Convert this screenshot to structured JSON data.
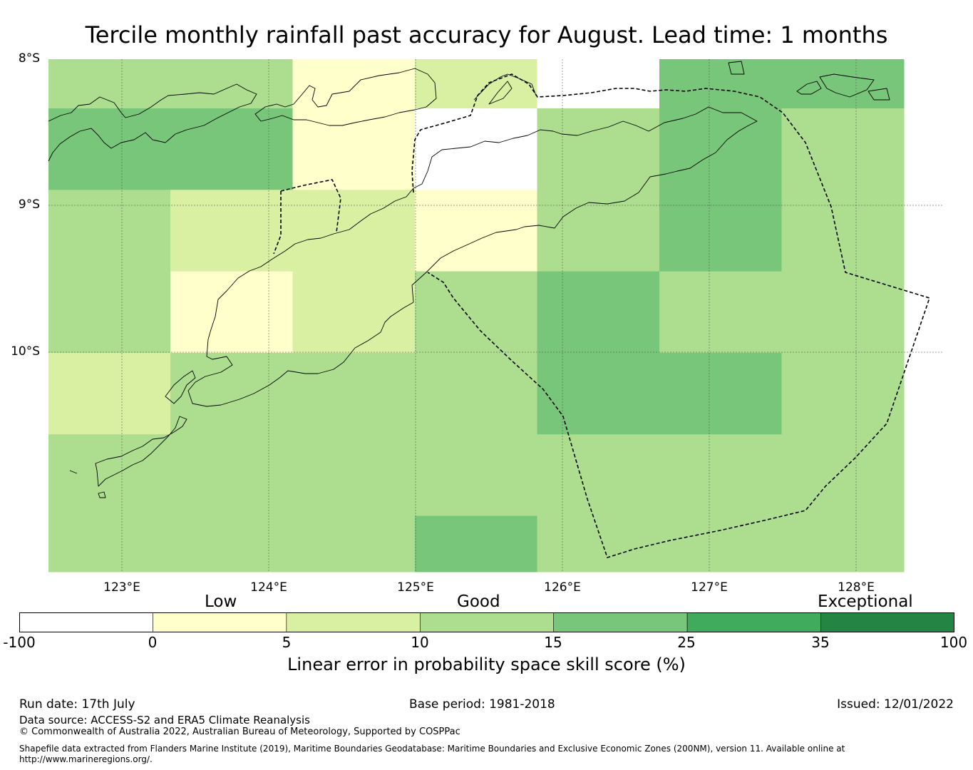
{
  "title": "Tercile monthly rainfall past accuracy for August. Lead time: 1 months",
  "latitude_labels": [
    "8°S",
    "9°S",
    "10°S"
  ],
  "longitude_labels": [
    "123°E",
    "124°E",
    "125°E",
    "126°E",
    "127°E",
    "128°E"
  ],
  "colors": {
    "cls_lt0": "#ffffff",
    "cls_0_5": "#ffffcc",
    "cls_5_10": "#d9f0a3",
    "cls_10_15": "#addd8e",
    "cls_15_25": "#78c679",
    "cls_25_35": "#41ab5d",
    "cls_35_100": "#238443"
  },
  "grid_cells_skill_class": [
    [
      "10-15",
      "10-15",
      "0-5",
      "5-10",
      "<0",
      "15-25",
      "15-25"
    ],
    [
      "15-25",
      "15-25",
      "0-5",
      "<0",
      "10-15",
      "15-25",
      "10-15"
    ],
    [
      "10-15",
      "5-10",
      "5-10",
      "0-5",
      "10-15",
      "15-25",
      "10-15"
    ],
    [
      "10-15",
      "0-5",
      "5-10",
      "10-15",
      "15-25",
      "10-15",
      "10-15"
    ],
    [
      "5-10",
      "10-15",
      "10-15",
      "10-15",
      "15-25",
      "15-25",
      "10-15"
    ],
    [
      "10-15",
      "10-15",
      "10-15",
      "10-15",
      "10-15",
      "10-15",
      "10-15"
    ],
    [
      "10-15",
      "10-15",
      "10-15",
      "15-25",
      "10-15",
      "10-15",
      "10-15"
    ]
  ],
  "legend": {
    "category_labels": [
      "Low",
      "Good",
      "Exceptional"
    ],
    "ticks": [
      "-100",
      "0",
      "5",
      "10",
      "15",
      "25",
      "35",
      "100"
    ],
    "title": "Linear error in probability space skill score (%)"
  },
  "footer": {
    "run_date": "Run date: 17th July",
    "base_period": "Base period: 1981-2018",
    "issued": "Issued: 12/01/2022",
    "data_source": "Data source: ACCESS-S2 and ERA5 Climate Reanalysis",
    "copyright": "© Commonwealth of Australia 2022, Australian Bureau of Meteorology, Supported by COSPPac",
    "shapefile_line1": "Shapefile data extracted from Flanders Marine Institute (2019), Maritime Boundaries Geodatabase: Maritime Boundaries and Exclusive Economic Zones (200NM), version 11. Available online at",
    "shapefile_line2": "http://www.marineregions.org/."
  }
}
